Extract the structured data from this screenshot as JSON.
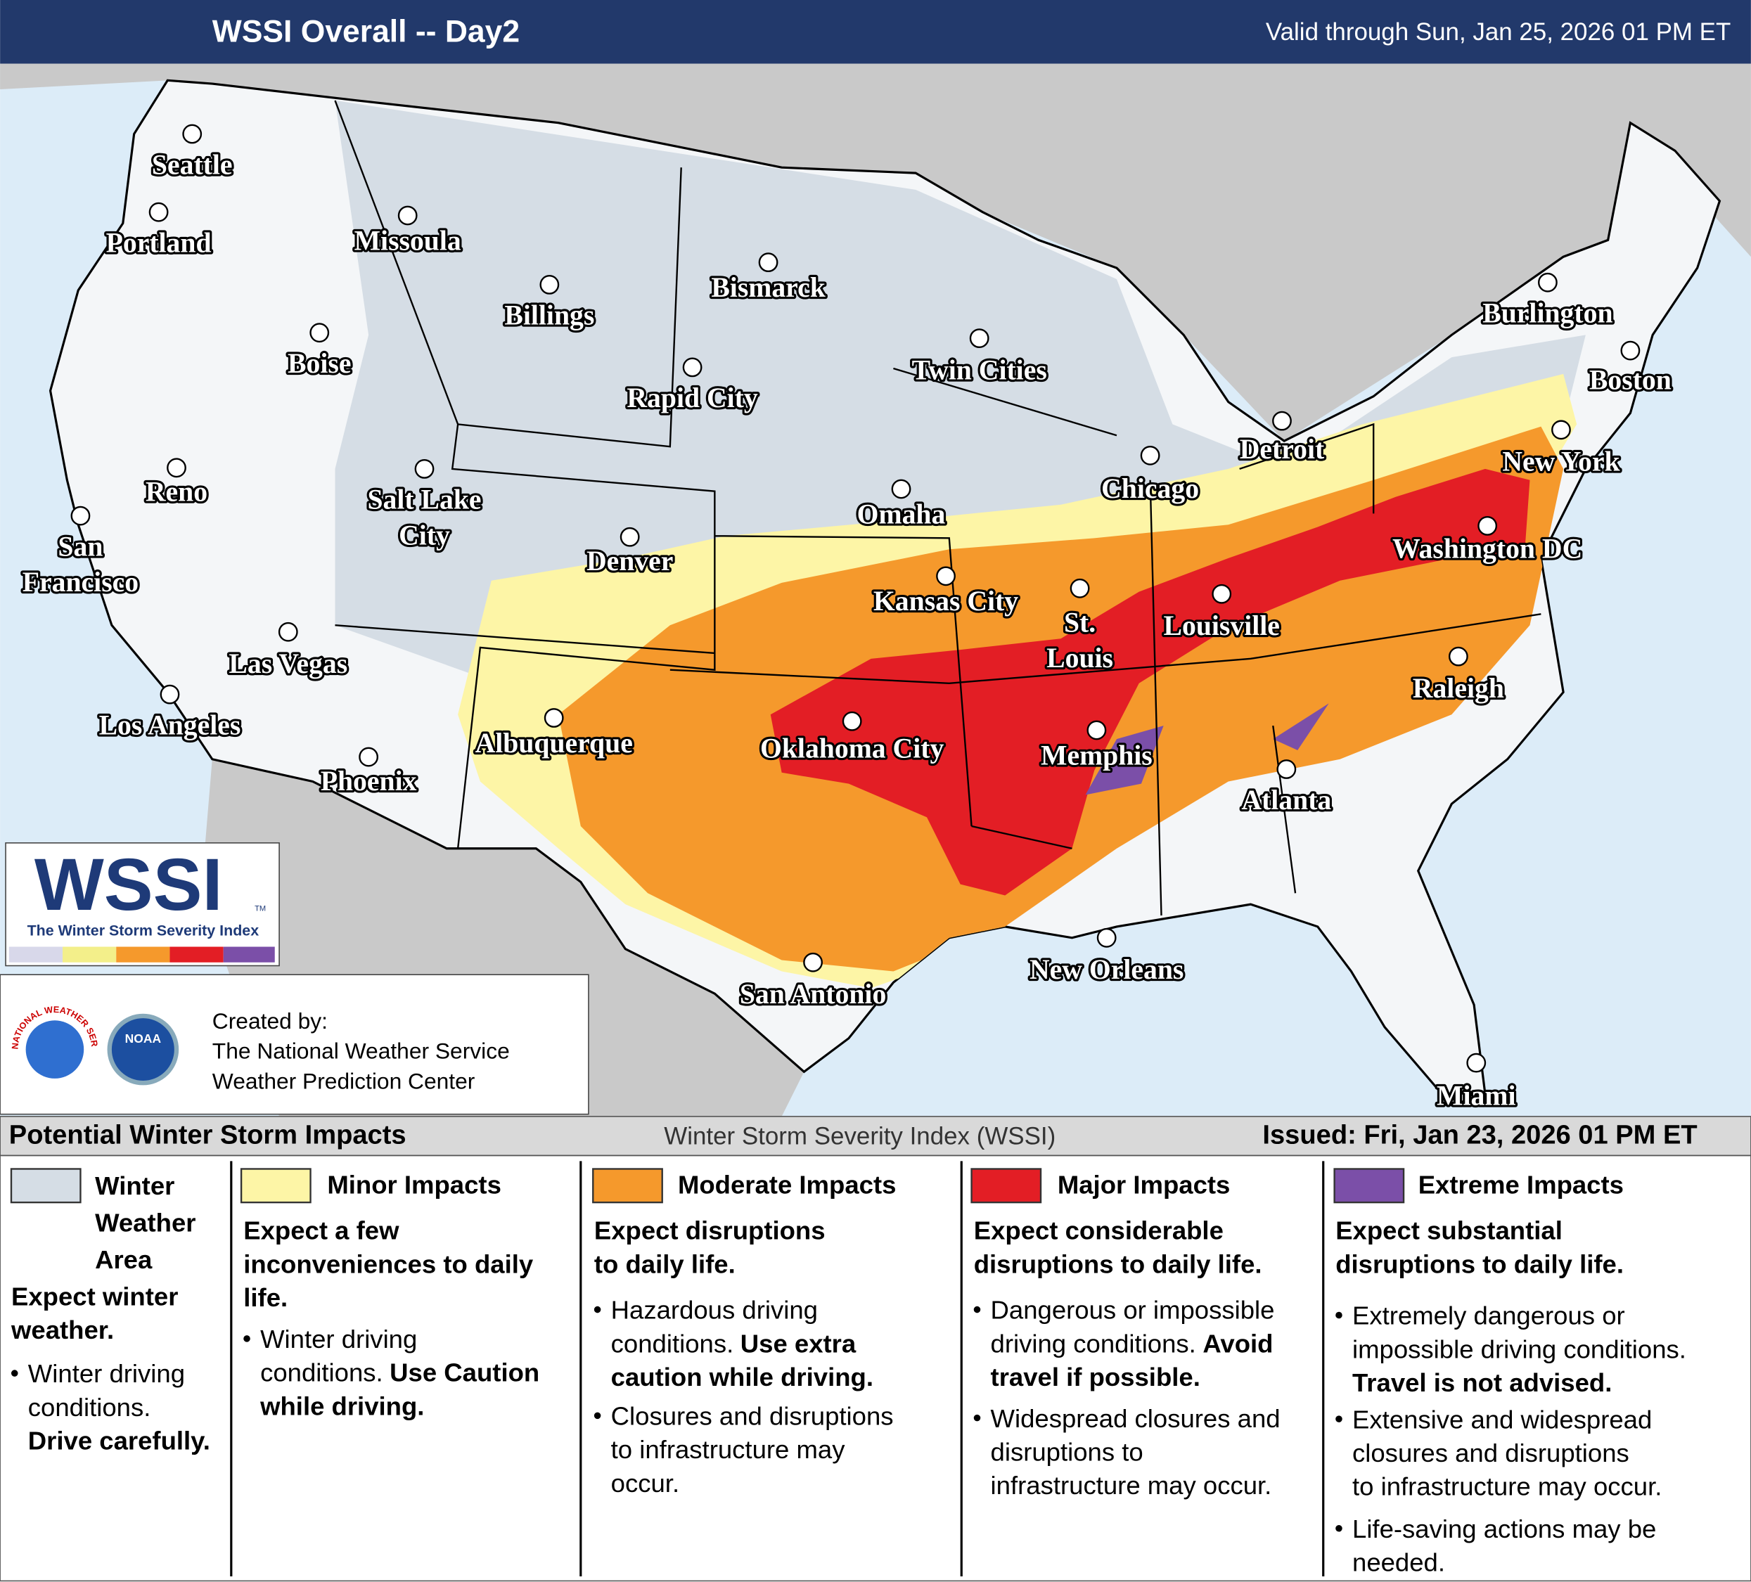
{
  "header": {
    "title": "WSSI Overall -- Day2",
    "valid": "Valid through Sun, Jan 25, 2026 01 PM ET"
  },
  "logo": {
    "mark": "WSSI",
    "tm": "TM",
    "subtitle": "The Winter Storm Severity Index"
  },
  "credits": {
    "nws_ring": "NATIONAL WEATHER SERVICE",
    "noaa": "NOAA",
    "lines": [
      "Created by:",
      "The National Weather Service",
      "Weather Prediction Center"
    ]
  },
  "cities": [
    {
      "lines": [
        "Seattle"
      ]
    },
    {
      "lines": [
        "Portland"
      ]
    },
    {
      "lines": [
        "Missoula"
      ]
    },
    {
      "lines": [
        "Billings"
      ]
    },
    {
      "lines": [
        "Bismarck"
      ]
    },
    {
      "lines": [
        "Boise"
      ]
    },
    {
      "lines": [
        "Rapid City"
      ]
    },
    {
      "lines": [
        "Twin Cities"
      ]
    },
    {
      "lines": [
        "Burlington"
      ]
    },
    {
      "lines": [
        "Boston"
      ]
    },
    {
      "lines": [
        "Reno"
      ]
    },
    {
      "lines": [
        "Salt Lake",
        "City"
      ]
    },
    {
      "lines": [
        "Omaha"
      ]
    },
    {
      "lines": [
        "Chicago"
      ]
    },
    {
      "lines": [
        "Detroit"
      ]
    },
    {
      "lines": [
        "New York"
      ]
    },
    {
      "lines": [
        "San",
        "Francisco"
      ]
    },
    {
      "lines": [
        "Denver"
      ]
    },
    {
      "lines": [
        "Kansas City"
      ]
    },
    {
      "lines": [
        "St.",
        "Louis"
      ]
    },
    {
      "lines": [
        "Louisville"
      ]
    },
    {
      "lines": [
        "Washington DC"
      ]
    },
    {
      "lines": [
        "Las Vegas"
      ]
    },
    {
      "lines": [
        "Los Angeles"
      ]
    },
    {
      "lines": [
        "Albuquerque"
      ]
    },
    {
      "lines": [
        "Oklahoma City"
      ]
    },
    {
      "lines": [
        "Memphis"
      ]
    },
    {
      "lines": [
        "Raleigh"
      ]
    },
    {
      "lines": [
        "Phoenix"
      ]
    },
    {
      "lines": [
        "Atlanta"
      ]
    },
    {
      "lines": [
        "New Orleans"
      ]
    },
    {
      "lines": [
        "San Antonio"
      ]
    },
    {
      "lines": [
        "Miami"
      ]
    }
  ],
  "legend": {
    "title": "Potential Winter Storm Impacts",
    "subtitle": "Winter Storm Severity Index (WSSI)",
    "issued": "Issued: Fri, Jan 23, 2026 01 PM ET",
    "categories": [
      {
        "color": "#d5dde5",
        "name": [
          "Winter",
          "Weather",
          "Area"
        ],
        "summary": [
          "Expect winter",
          "weather."
        ],
        "bullets": [
          [
            {
              "text": "Winter driving"
            },
            {
              "text": "conditions."
            },
            {
              "bold": "Drive carefully."
            }
          ]
        ]
      },
      {
        "color": "#fdf5a6",
        "name": [
          "Minor Impacts"
        ],
        "summary": [
          "Expect a few",
          "inconveniences to daily",
          "life."
        ],
        "bullets": [
          [
            {
              "text": "Winter driving"
            },
            {
              "text": "conditions.",
              "bold": "Use Caution"
            },
            {
              "bold": "while driving."
            }
          ]
        ]
      },
      {
        "color": "#f5992c",
        "name": [
          "Moderate Impacts"
        ],
        "summary": [
          "Expect disruptions",
          "to daily life."
        ],
        "bullets": [
          [
            {
              "text": "Hazardous driving"
            },
            {
              "text": "conditions.",
              "bold": "Use extra"
            },
            {
              "bold": "caution while driving."
            }
          ],
          [
            {
              "text": "Closures and disruptions"
            },
            {
              "text": "to infrastructure may"
            },
            {
              "text": "occur."
            }
          ]
        ]
      },
      {
        "color": "#e31e25",
        "name": [
          "Major Impacts"
        ],
        "summary": [
          "Expect considerable",
          "disruptions to daily life."
        ],
        "bullets": [
          [
            {
              "text": "Dangerous or impossible"
            },
            {
              "text": "driving conditions.",
              "bold": "Avoid"
            },
            {
              "bold": "travel if possible."
            }
          ],
          [
            {
              "text": "Widespread closures and"
            },
            {
              "text": "disruptions to"
            },
            {
              "text": "infrastructure may occur."
            }
          ]
        ]
      },
      {
        "color": "#7b4fa8",
        "name": [
          "Extreme Impacts"
        ],
        "summary": [
          "Expect substantial",
          "disruptions to daily life."
        ],
        "bullets": [
          [
            {
              "text": "Extremely dangerous or"
            },
            {
              "text": "impossible driving conditions."
            },
            {
              "bold": "Travel is not advised."
            }
          ],
          [
            {
              "text": "Extensive and widespread"
            },
            {
              "text": "closures and disruptions"
            },
            {
              "text": "to infrastructure may occur."
            }
          ],
          [
            {
              "text": "Life-saving actions may be"
            },
            {
              "text": "needed."
            }
          ]
        ]
      }
    ]
  }
}
